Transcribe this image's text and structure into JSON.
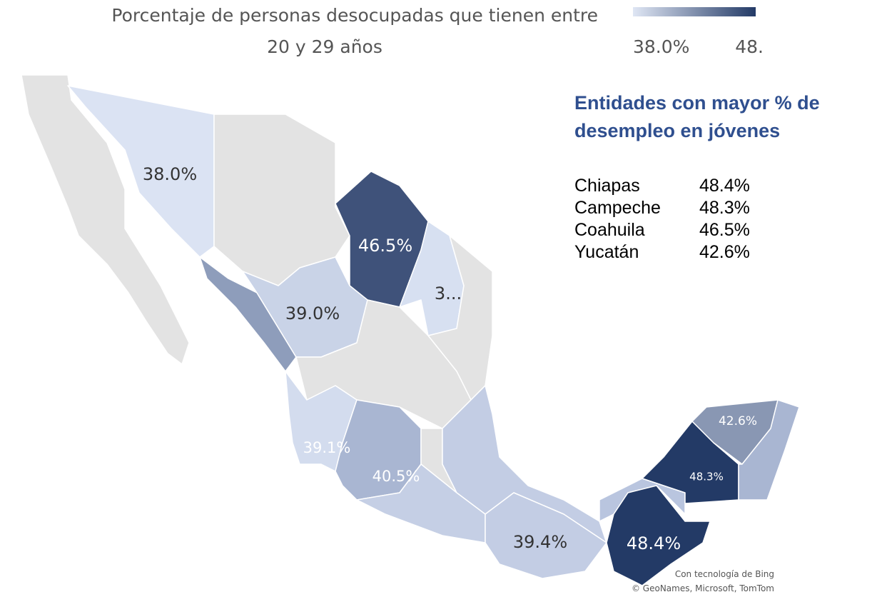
{
  "legend": {
    "title_lines": [
      "Porcentaje de personas desocupadas que tienen entre",
      "20 y 29 años"
    ],
    "min_label": "38.0%",
    "max_label": "48."
  },
  "map_labels": [
    "38.0%",
    "46.5%",
    "3...",
    "39.0%",
    "39.1%",
    "40.5%",
    "42.6%",
    "48.3%",
    "39.4%",
    "48.4%"
  ],
  "panel": {
    "title_lines": [
      "Entidades con mayor % de",
      "desempleo en jóvenes"
    ],
    "rows": [
      [
        "Chiapas",
        "48.4%"
      ],
      [
        "Campeche",
        "48.3%"
      ],
      [
        "Coahuila",
        "46.5%"
      ],
      [
        "Yucatán",
        "42.6%"
      ]
    ]
  },
  "attribution": [
    "Con tecnología de Bing",
    "© GeoNames, Microsoft, TomTom"
  ]
}
